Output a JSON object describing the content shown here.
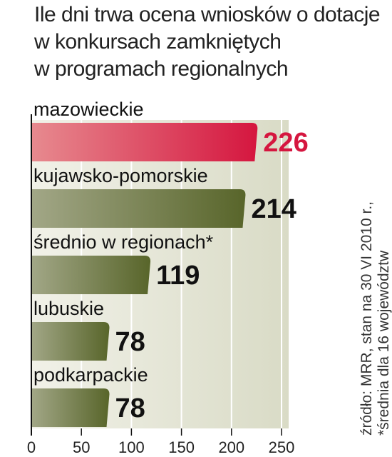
{
  "title_lines": [
    "Ile dni trwa ocena wniosków o dotacje",
    "w konkursach zamkniętych",
    "w programach regionalnych"
  ],
  "source_lines": [
    "źródło: MRR, stan na 30 VI 2010 r.,",
    "*średnia dla 16 województw"
  ],
  "colors": {
    "highlight_bar": "#d5163f",
    "regular_bar": "#5c6a2b",
    "highlight_value": "#d5163f",
    "regular_value": "#111111",
    "background_panel": "#e3e4d2"
  },
  "chart_data": {
    "type": "bar",
    "orientation": "horizontal",
    "categories": [
      "mazowieckie",
      "kujawsko-pomorskie",
      "średnio w regionach*",
      "lubuskie",
      "podkarpackie"
    ],
    "values": [
      226,
      214,
      119,
      78,
      78
    ],
    "value_labels": [
      "226",
      "214",
      "119",
      "78",
      "78"
    ],
    "highlight": [
      true,
      false,
      false,
      false,
      false
    ],
    "xlim": [
      0,
      250
    ],
    "x_ticks": [
      0,
      50,
      100,
      150,
      200,
      250
    ],
    "x_tick_labels": [
      "0",
      "50",
      "100",
      "150",
      "200",
      "250"
    ],
    "grid": true,
    "title": "Ile dni trwa ocena wniosków o dotacje w konkursach zamkniętych w programach regionalnych",
    "xlabel": "",
    "ylabel": ""
  }
}
